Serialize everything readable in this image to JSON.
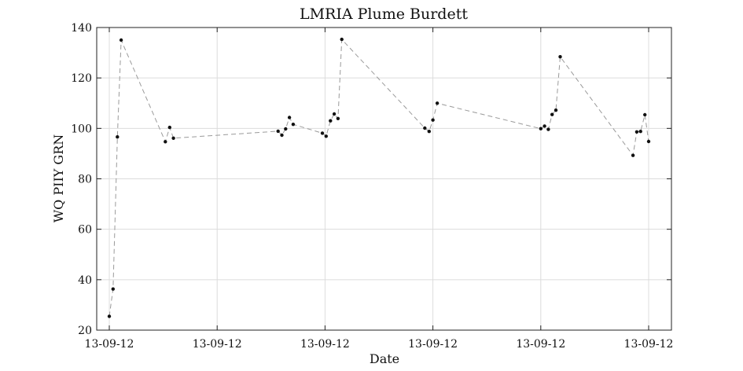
{
  "chart_data": {
    "type": "line",
    "title": "LMRIA Plume Burdett",
    "xlabel": "Date",
    "ylabel": "WQ PIIY GRN",
    "ylim": [
      20,
      140
    ],
    "yticks": [
      20,
      40,
      60,
      80,
      100,
      120,
      140
    ],
    "xlim": [
      0,
      1
    ],
    "xticks": [
      0.0,
      0.2,
      0.4,
      0.6,
      0.8,
      1.0
    ],
    "xtick_labels": [
      "13-09-12",
      "13-09-12",
      "13-09-12",
      "13-09-12",
      "13-09-12",
      "13-09-12"
    ],
    "grid": true,
    "line_style": "dashed",
    "line_color": "#9a9a9a",
    "marker_color": "#111111",
    "series": [
      {
        "points": [
          [
            0.0,
            25.5
          ],
          [
            0.007,
            36.3
          ],
          [
            0.015,
            96.6
          ],
          [
            0.022,
            135.0
          ],
          [
            0.104,
            94.7
          ],
          [
            0.112,
            100.4
          ],
          [
            0.119,
            96.1
          ],
          [
            0.313,
            98.9
          ],
          [
            0.32,
            97.3
          ],
          [
            0.327,
            99.8
          ],
          [
            0.334,
            104.3
          ],
          [
            0.341,
            101.6
          ],
          [
            0.395,
            98.1
          ],
          [
            0.402,
            96.9
          ],
          [
            0.41,
            103.0
          ],
          [
            0.417,
            105.7
          ],
          [
            0.424,
            103.9
          ],
          [
            0.431,
            135.3
          ],
          [
            0.585,
            100.1
          ],
          [
            0.593,
            98.8
          ],
          [
            0.6,
            103.3
          ],
          [
            0.608,
            110.0
          ],
          [
            0.8,
            99.9
          ],
          [
            0.807,
            100.9
          ],
          [
            0.814,
            99.6
          ],
          [
            0.821,
            105.5
          ],
          [
            0.828,
            107.2
          ],
          [
            0.836,
            128.4
          ],
          [
            0.971,
            89.3
          ],
          [
            0.978,
            98.6
          ],
          [
            0.985,
            98.8
          ],
          [
            0.993,
            105.4
          ],
          [
            1.0,
            94.8
          ]
        ]
      }
    ]
  }
}
